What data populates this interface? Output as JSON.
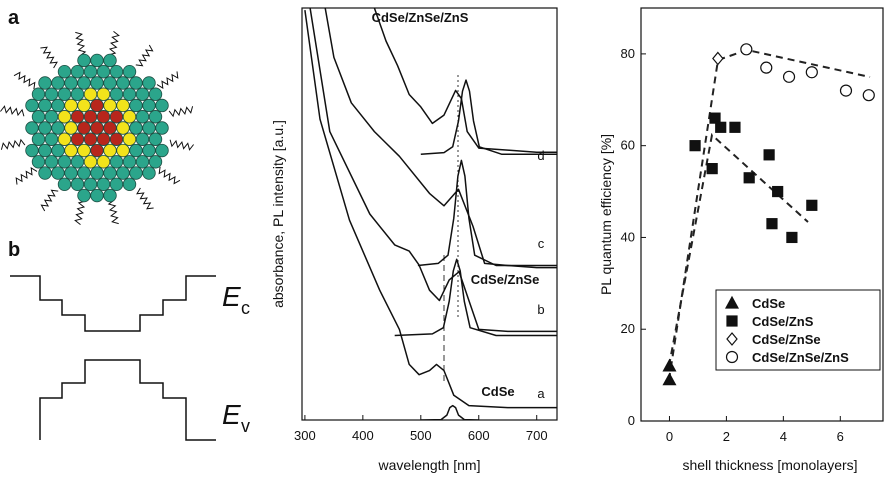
{
  "panel_a": {
    "label": "a"
  },
  "panel_b": {
    "label": "b",
    "conduction": {
      "symbol": "E",
      "subscript": "c"
    },
    "valence": {
      "symbol": "E",
      "subscript": "v"
    }
  },
  "chart_data": [
    {
      "type": "line",
      "xlabel": "wavelength [nm]",
      "ylabel": "absorbance, PL intensity [a.u.]",
      "xlim": [
        295,
        735
      ],
      "xticks": [
        300,
        400,
        500,
        600,
        700
      ],
      "ylim": [
        0,
        10
      ],
      "annotations": [
        "CdSe/ZnSe/ZnS",
        "d",
        "c",
        "CdSe/ZnSe",
        "b",
        "CdSe",
        "a"
      ],
      "series": [
        {
          "color": "#111",
          "x": [
            420,
            440,
            460,
            480,
            500,
            520,
            540,
            560,
            570,
            580,
            600,
            650,
            700,
            735
          ],
          "values": [
            10,
            9.2,
            8.6,
            7.9,
            7.6,
            7.2,
            7.4,
            8.0,
            7.8,
            7.0,
            6.6,
            6.55,
            6.5,
            6.5
          ]
        },
        {
          "color": "#111",
          "x": [
            335,
            350,
            380,
            420,
            463,
            515,
            540,
            565,
            590,
            610,
            650,
            700,
            735
          ],
          "values": [
            10,
            8.8,
            7.7,
            7.0,
            6.4,
            5.5,
            5.2,
            5.6,
            4.7,
            3.8,
            3.75,
            3.7,
            3.7
          ]
        },
        {
          "color": "#111",
          "x": [
            309,
            343,
            412,
            455,
            480,
            497,
            515,
            532,
            549,
            566,
            583,
            600,
            650,
            735
          ],
          "values": [
            10,
            7.0,
            5.0,
            4.25,
            4.1,
            3.76,
            3.15,
            2.9,
            3.4,
            3.6,
            2.9,
            2.2,
            2.15,
            2.15
          ]
        },
        {
          "color": "#111",
          "x": [
            300,
            326,
            377,
            429,
            463,
            480,
            497,
            515,
            527,
            540,
            557,
            583,
            650,
            735
          ],
          "values": [
            9.95,
            7.3,
            4.85,
            3.15,
            2.2,
            1.35,
            1.1,
            1.2,
            1.35,
            1.2,
            0.6,
            0.35,
            0.3,
            0.3
          ]
        },
        {
          "color": "#111",
          "x": [
            500,
            540,
            555,
            565,
            572,
            578,
            584,
            591,
            601,
            640,
            735
          ],
          "values": [
            6.45,
            6.49,
            6.63,
            7.26,
            7.98,
            8.25,
            7.98,
            7.26,
            6.63,
            6.45,
            6.45
          ]
        },
        {
          "color": "#111",
          "x": [
            495,
            530,
            547,
            557,
            564,
            570,
            576,
            583,
            593,
            630,
            735
          ],
          "values": [
            3.75,
            3.8,
            4.0,
            4.9,
            5.92,
            6.3,
            5.92,
            4.9,
            4.0,
            3.75,
            3.75
          ]
        },
        {
          "color": "#111",
          "x": [
            455,
            520,
            539,
            549,
            556,
            562,
            568,
            575,
            585,
            630,
            735
          ],
          "values": [
            2.05,
            2.09,
            2.24,
            2.88,
            3.62,
            3.9,
            3.62,
            2.88,
            2.24,
            2.05,
            2.05
          ]
        },
        {
          "color": "#111",
          "x": [
            500,
            535,
            545,
            550,
            555,
            560,
            565,
            575,
            600
          ],
          "values": [
            0,
            0.01,
            0.12,
            0.3,
            0.35,
            0.3,
            0.12,
            0.01,
            0
          ]
        }
      ]
    },
    {
      "type": "scatter",
      "xlabel": "shell thickness [monolayers]",
      "ylabel": "PL quantum efficiency [%]",
      "xlim": [
        -1,
        7.5
      ],
      "xticks": [
        0,
        2,
        4,
        6
      ],
      "ylim": [
        0,
        90
      ],
      "yticks": [
        0,
        20,
        40,
        60,
        80
      ],
      "series": [
        {
          "name": "CdSe",
          "marker": "triangle",
          "filled": true,
          "color": "#111",
          "x": [
            0,
            0
          ],
          "values": [
            12,
            9
          ]
        },
        {
          "name": "CdSe/ZnS",
          "marker": "square",
          "filled": true,
          "color": "#111",
          "x": [
            0.9,
            1.5,
            1.6,
            1.8,
            2.3,
            2.8,
            3.5,
            3.6,
            3.8,
            4.3,
            5
          ],
          "values": [
            60,
            55,
            66,
            64,
            64,
            53,
            58,
            43,
            50,
            40,
            47
          ]
        },
        {
          "name": "CdSe/ZnSe",
          "marker": "diamond",
          "filled": false,
          "color": "#111",
          "x": [
            1.7
          ],
          "values": [
            79
          ]
        },
        {
          "name": "CdSe/ZnSe/ZnS",
          "marker": "circle",
          "filled": false,
          "color": "#111",
          "x": [
            2.7,
            3.4,
            4.2,
            5,
            6.2,
            7
          ],
          "values": [
            81,
            77,
            75,
            76,
            72,
            71
          ]
        }
      ]
    }
  ]
}
